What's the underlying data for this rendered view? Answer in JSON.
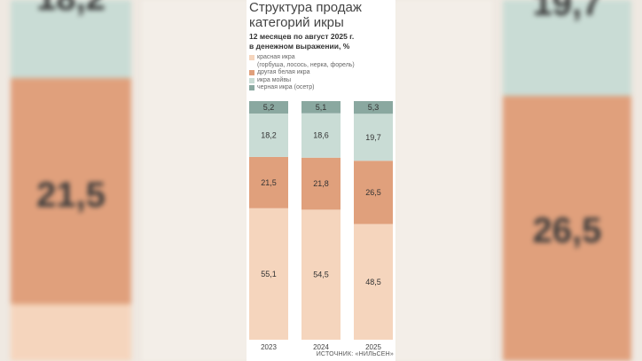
{
  "chart_data": {
    "type": "bar",
    "stacked": true,
    "title": "Структура продаж категорий икры",
    "subtitle_line1": "12 месяцев по август 2025 г.",
    "subtitle_line2": "в денежном выражении, %",
    "categories": [
      "2023",
      "2024",
      "2025"
    ],
    "series": [
      {
        "name": "красная икра",
        "name_note": "(горбуша, лосось, нерка, форель)",
        "color": "#f5d5bd",
        "values": [
          55.1,
          54.5,
          48.5
        ],
        "labels": [
          "55,1",
          "54,5",
          "48,5"
        ]
      },
      {
        "name": "другая белая икра",
        "color": "#e0a07c",
        "values": [
          21.5,
          21.8,
          26.5
        ],
        "labels": [
          "21,5",
          "21,8",
          "26,5"
        ]
      },
      {
        "name": "икра мойвы",
        "color": "#c9dcd5",
        "values": [
          18.2,
          18.6,
          19.7
        ],
        "labels": [
          "18,2",
          "18,6",
          "19,7"
        ]
      },
      {
        "name": "черная икра (осетр)",
        "color": "#8aa8a0",
        "values": [
          5.2,
          5.1,
          5.3
        ],
        "labels": [
          "5,2",
          "5,1",
          "5,3"
        ]
      }
    ],
    "ylim": [
      0,
      100
    ],
    "source": "ИСТОЧНИК: «НИЛЬСЕН»"
  },
  "background": {
    "left_numbers": [
      "18,2",
      "21,5"
    ],
    "right_numbers": [
      "19,7",
      "26,5"
    ]
  }
}
